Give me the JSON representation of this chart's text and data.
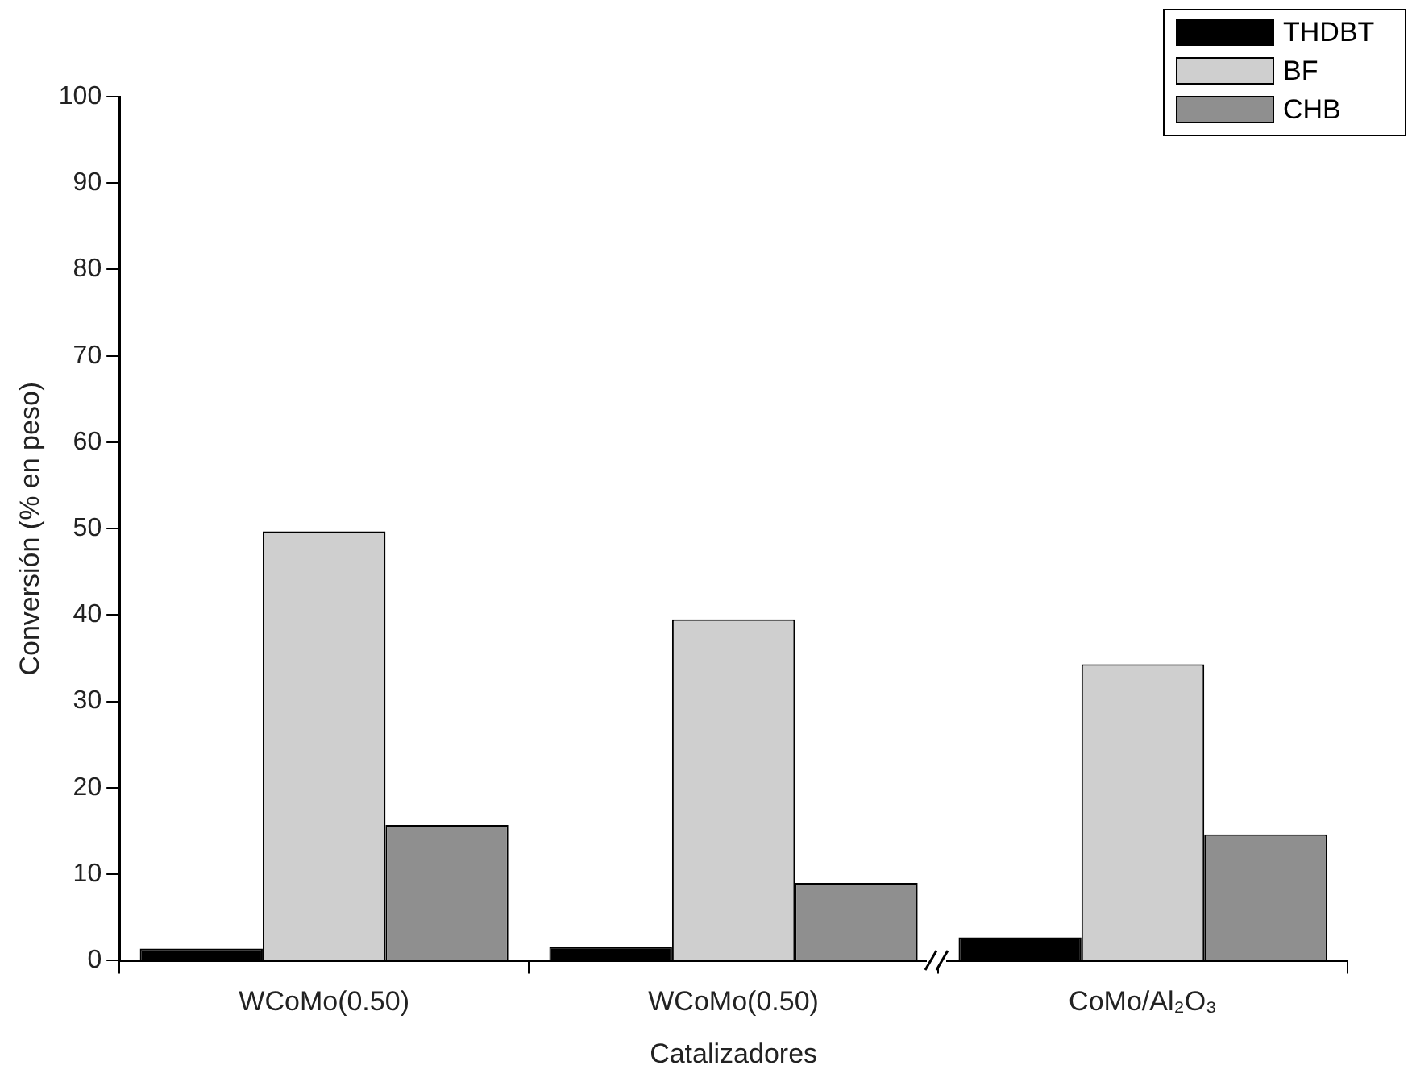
{
  "chart_data": {
    "type": "bar",
    "xlabel": "Catalizadores",
    "ylabel": "Conversión (% en peso)",
    "categories": [
      "WCoMo(0.50)",
      "WCoMo(0.50)",
      "CoMo/Al₂O₃"
    ],
    "series": [
      {
        "name": "THDBT",
        "color": "#000000",
        "values": [
          1.4,
          1.6,
          2.7
        ]
      },
      {
        "name": "BF",
        "color": "#cfcfcf",
        "values": [
          49.7,
          39.5,
          34.3
        ]
      },
      {
        "name": "CHB",
        "color": "#8f8f8f",
        "values": [
          15.7,
          9.0,
          14.6
        ]
      }
    ],
    "ylim": [
      0,
      100
    ],
    "yticks": [
      0,
      10,
      20,
      30,
      40,
      50,
      60,
      70,
      80,
      90,
      100
    ],
    "grid": false,
    "legend": "top right"
  }
}
